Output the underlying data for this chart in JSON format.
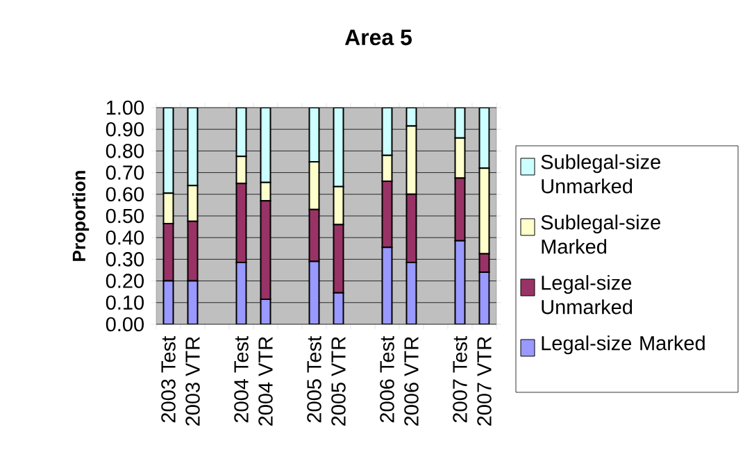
{
  "chart_data": {
    "type": "bar",
    "title": "Area 5",
    "ylabel": "Proportion",
    "stacked": true,
    "categories": [
      "2003 Test",
      "2003 VTR",
      null,
      "2004 Test",
      "2004 VTR",
      null,
      "2005 Test",
      "2005 VTR",
      null,
      "2006 Test",
      "2006 VTR",
      null,
      "2007 Test",
      "2007 VTR"
    ],
    "series": [
      {
        "name": "Legal-size Marked",
        "color": "#9999ff",
        "values": [
          0.2,
          0.2,
          null,
          0.285,
          0.115,
          null,
          0.29,
          0.145,
          null,
          0.355,
          0.285,
          null,
          0.385,
          0.24
        ]
      },
      {
        "name": "Legal-size Unmarked",
        "color": "#993366",
        "values": [
          0.265,
          0.275,
          null,
          0.365,
          0.455,
          null,
          0.24,
          0.315,
          null,
          0.305,
          0.315,
          null,
          0.29,
          0.085
        ]
      },
      {
        "name": "Sublegal-size Marked",
        "color": "#ffffcc",
        "values": [
          0.14,
          0.165,
          null,
          0.125,
          0.085,
          null,
          0.22,
          0.175,
          null,
          0.12,
          0.315,
          null,
          0.185,
          0.395
        ]
      },
      {
        "name": "Sublegal-size Unmarked",
        "color": "#ccffff",
        "values": [
          0.395,
          0.36,
          null,
          0.225,
          0.345,
          null,
          0.25,
          0.365,
          null,
          0.22,
          0.085,
          null,
          0.14,
          0.28
        ]
      }
    ],
    "ylim": [
      0,
      1
    ],
    "yticks": [
      {
        "value": 0,
        "label": "0.00"
      },
      {
        "value": 0.1,
        "label": "0.10"
      },
      {
        "value": 0.2,
        "label": "0.20"
      },
      {
        "value": 0.3,
        "label": "0.30"
      },
      {
        "value": 0.4,
        "label": "0.40"
      },
      {
        "value": 0.5,
        "label": "0.50"
      },
      {
        "value": 0.6,
        "label": "0.60"
      },
      {
        "value": 0.7,
        "label": "0.70"
      },
      {
        "value": 0.8,
        "label": "0.80"
      },
      {
        "value": 0.9,
        "label": "0.90"
      },
      {
        "value": 1,
        "label": "1.00"
      }
    ],
    "grid": "y",
    "legend": "right"
  }
}
